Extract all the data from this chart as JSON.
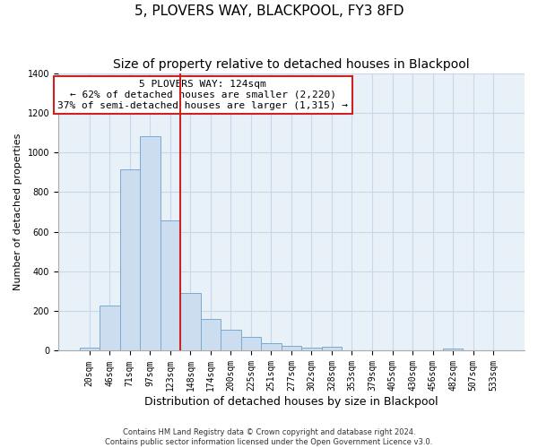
{
  "title": "5, PLOVERS WAY, BLACKPOOL, FY3 8FD",
  "subtitle": "Size of property relative to detached houses in Blackpool",
  "xlabel": "Distribution of detached houses by size in Blackpool",
  "ylabel": "Number of detached properties",
  "bar_labels": [
    "20sqm",
    "46sqm",
    "71sqm",
    "97sqm",
    "123sqm",
    "148sqm",
    "174sqm",
    "200sqm",
    "225sqm",
    "251sqm",
    "277sqm",
    "302sqm",
    "328sqm",
    "353sqm",
    "379sqm",
    "405sqm",
    "430sqm",
    "456sqm",
    "482sqm",
    "507sqm",
    "533sqm"
  ],
  "bar_values": [
    15,
    228,
    915,
    1080,
    655,
    292,
    158,
    107,
    70,
    40,
    25,
    15,
    20,
    0,
    0,
    0,
    0,
    0,
    10,
    0,
    0
  ],
  "bar_color": "#ccddf0",
  "bar_edge_color": "#7aaad0",
  "highlight_bar_index": 4,
  "highlight_line_color": "#cc2222",
  "annotation_line1": "5 PLOVERS WAY: 124sqm",
  "annotation_line2": "← 62% of detached houses are smaller (2,220)",
  "annotation_line3": "37% of semi-detached houses are larger (1,315) →",
  "annotation_box_edge_color": "#cc2222",
  "annotation_box_facecolor": "#ffffff",
  "ylim": [
    0,
    1400
  ],
  "yticks": [
    0,
    200,
    400,
    600,
    800,
    1000,
    1200,
    1400
  ],
  "footer_line1": "Contains HM Land Registry data © Crown copyright and database right 2024.",
  "footer_line2": "Contains public sector information licensed under the Open Government Licence v3.0.",
  "title_fontsize": 11,
  "subtitle_fontsize": 10,
  "ylabel_fontsize": 8,
  "xlabel_fontsize": 9,
  "tick_fontsize": 7,
  "annotation_fontsize": 8,
  "footer_fontsize": 6,
  "grid_color": "#c8d8e8",
  "background_color": "#ffffff",
  "plot_bg_color": "#e8f0f8"
}
